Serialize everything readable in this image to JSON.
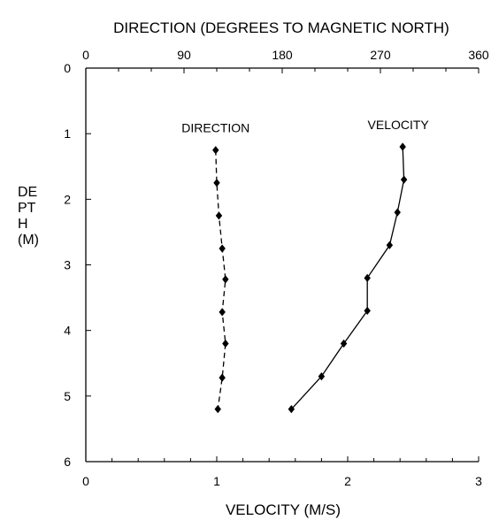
{
  "chart_data": {
    "type": "line",
    "top_axis": {
      "label": "DIRECTION (DEGREES TO MAGNETIC NORTH)",
      "range": [
        0,
        360
      ],
      "ticks": [
        "0",
        "90",
        "180",
        "270",
        "360"
      ]
    },
    "bottom_axis": {
      "label": "VELOCITY (M/S)",
      "range": [
        0,
        3
      ],
      "ticks": [
        "0",
        "1",
        "2",
        "3"
      ]
    },
    "y_axis": {
      "label_lines": [
        "DE",
        "PT",
        "H",
        "(M)"
      ],
      "range": [
        0,
        6
      ],
      "inverted": true,
      "ticks": [
        "0",
        "1",
        "2",
        "3",
        "4",
        "5",
        "6"
      ]
    },
    "grid": false,
    "series": [
      {
        "name": "DIRECTION",
        "axis": "top",
        "style": "dashed",
        "points": [
          {
            "x": 119,
            "depth": 1.25
          },
          {
            "x": 120,
            "depth": 1.75
          },
          {
            "x": 122,
            "depth": 2.25
          },
          {
            "x": 125,
            "depth": 2.75
          },
          {
            "x": 128,
            "depth": 3.22
          },
          {
            "x": 125,
            "depth": 3.72
          },
          {
            "x": 128,
            "depth": 4.2
          },
          {
            "x": 125,
            "depth": 4.72
          },
          {
            "x": 121,
            "depth": 5.2
          }
        ]
      },
      {
        "name": "VELOCITY",
        "axis": "bottom",
        "style": "solid",
        "points": [
          {
            "x": 2.42,
            "depth": 1.2
          },
          {
            "x": 2.43,
            "depth": 1.7
          },
          {
            "x": 2.38,
            "depth": 2.2
          },
          {
            "x": 2.32,
            "depth": 2.7
          },
          {
            "x": 2.15,
            "depth": 3.2
          },
          {
            "x": 2.15,
            "depth": 3.7
          },
          {
            "x": 1.97,
            "depth": 4.2
          },
          {
            "x": 1.8,
            "depth": 4.7
          },
          {
            "x": 1.57,
            "depth": 5.2
          }
        ]
      }
    ]
  }
}
